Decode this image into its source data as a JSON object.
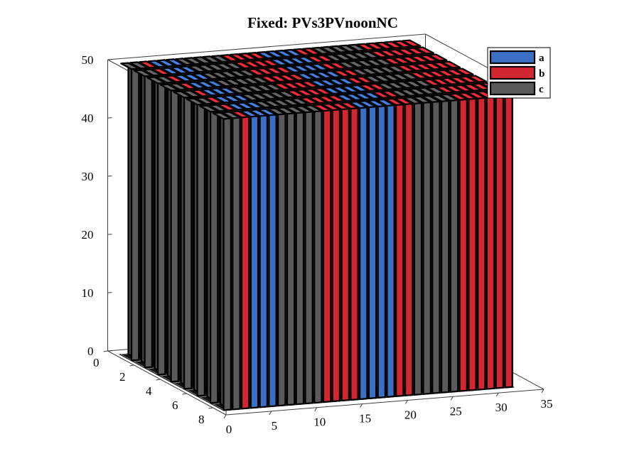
{
  "chart_data": {
    "type": "bar3",
    "title": "Fixed: PVs3PVnoonNC",
    "xlabel": "",
    "ylabel": "",
    "zlabel": "",
    "xlim": [
      0,
      35
    ],
    "ylim": [
      0,
      9
    ],
    "zlim": [
      0,
      50
    ],
    "x_ticks": [
      0,
      5,
      10,
      15,
      20,
      25,
      30,
      35
    ],
    "y_ticks": [
      0,
      2,
      4,
      6,
      8
    ],
    "z_ticks": [
      0,
      10,
      20,
      30,
      40,
      50
    ],
    "x_tick_labels": [
      "0",
      "5",
      "10",
      "15",
      "20",
      "25",
      "30",
      "35"
    ],
    "y_tick_labels": [
      "0",
      "2",
      "4",
      "6",
      "8"
    ],
    "z_tick_labels": [
      "0",
      "10",
      "20",
      "30",
      "40",
      "50"
    ],
    "x": [
      1,
      2,
      3,
      4,
      5,
      6,
      7,
      8,
      9,
      10,
      11,
      12,
      13,
      14,
      15,
      16,
      17,
      18,
      19,
      20,
      21,
      22,
      23,
      24,
      25,
      26,
      27,
      28,
      29,
      30,
      31,
      32
    ],
    "rows": [
      1,
      2,
      3,
      4,
      5,
      6,
      7,
      8
    ],
    "phase_by_bus": [
      "c",
      "c",
      "b",
      "a",
      "a",
      "a",
      "c",
      "c",
      "c",
      "c",
      "c",
      "b",
      "b",
      "b",
      "b",
      "a",
      "a",
      "a",
      "a",
      "b",
      "b",
      "c",
      "c",
      "c",
      "c",
      "c",
      "b",
      "b",
      "b",
      "b",
      "b",
      "b"
    ],
    "series": [
      {
        "name": "a",
        "color": "#3a6fc4",
        "value": 50
      },
      {
        "name": "b",
        "color": "#d22630",
        "value": 50
      },
      {
        "name": "c",
        "color": "#5a5a5c",
        "value": 50
      }
    ],
    "legend_position": "top-right",
    "grid": false,
    "box": true
  }
}
